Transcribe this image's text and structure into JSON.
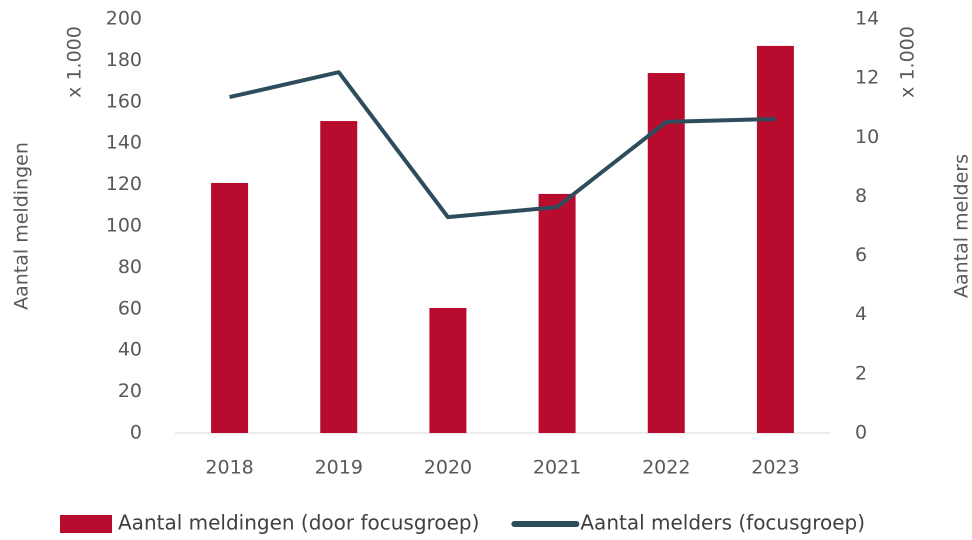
{
  "chart_data": {
    "type": "combo",
    "categories": [
      "2018",
      "2019",
      "2020",
      "2021",
      "2022",
      "2023"
    ],
    "series": [
      {
        "name": "Aantal meldingen (door focusgroep)",
        "type": "bar",
        "color": "#b80c2f",
        "values": [
          120.8,
          150.7,
          60.4,
          115.5,
          173.9,
          187
        ]
      },
      {
        "name": "Aantal melders (focusgroep)",
        "type": "line",
        "axis": "y2",
        "color": "#2e4d5c",
        "values": [
          11.36,
          12.2,
          7.3,
          7.64,
          10.52,
          10.62
        ]
      }
    ],
    "ylabel": "Aantal meldingen",
    "ylabel_unit": "x 1.000",
    "y2label": "Aantal melders",
    "y2label_unit": "x 1.000",
    "ylim": [
      0,
      200
    ],
    "yticks": [
      0,
      20,
      40,
      60,
      80,
      100,
      120,
      140,
      160,
      180,
      200
    ],
    "y2lim": [
      0,
      14
    ],
    "y2ticks": [
      0,
      2,
      4,
      6,
      8,
      10,
      12,
      14
    ],
    "legend": "bottom"
  }
}
